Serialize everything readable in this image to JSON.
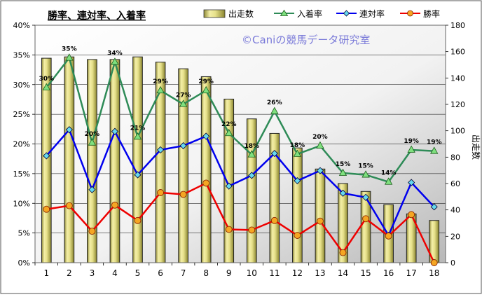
{
  "chart_data": {
    "type": "bar+line",
    "title": "勝率、連対率、入着率",
    "watermark": "©Caniの競馬データ研究室",
    "categories": [
      "1",
      "2",
      "3",
      "4",
      "5",
      "6",
      "7",
      "8",
      "9",
      "10",
      "11",
      "12",
      "13",
      "14",
      "15",
      "16",
      "17",
      "18"
    ],
    "y_left": {
      "ticks": [
        "0%",
        "5%",
        "10%",
        "15%",
        "20%",
        "25%",
        "30%",
        "35%",
        "40%"
      ],
      "range": [
        0,
        40
      ]
    },
    "y_right": {
      "label": "出走数",
      "ticks": [
        "0",
        "20",
        "40",
        "60",
        "80",
        "100",
        "120",
        "140",
        "160",
        "180"
      ],
      "range": [
        0,
        180
      ]
    },
    "legend": {
      "position": "top",
      "items": [
        "出走数",
        "入着率",
        "連対率",
        "勝率"
      ]
    },
    "bars": {
      "name": "出走数",
      "axis": "right",
      "color": "#e6e08a",
      "values": [
        155,
        156,
        154,
        154,
        156,
        152,
        147,
        141,
        124,
        109,
        98,
        87,
        71,
        60,
        54,
        44,
        37,
        32
      ]
    },
    "series": [
      {
        "name": "入着率",
        "axis": "left",
        "color": "#2e8b57",
        "marker": "triangle",
        "values": [
          29.5,
          34.5,
          20.2,
          33.8,
          21.2,
          29.0,
          26.7,
          29.0,
          21.8,
          18.2,
          25.5,
          18.3,
          19.7,
          15.1,
          14.8,
          13.6,
          19.0,
          18.8
        ],
        "labels": [
          "30%",
          "35%",
          "20%",
          "34%",
          "21%",
          "29%",
          "27%",
          "29%",
          "22%",
          "18%",
          "26%",
          "18%",
          "20%",
          "15%",
          "15%",
          "14%",
          "19%",
          "19%"
        ]
      },
      {
        "name": "連対率",
        "axis": "left",
        "color": "#0000ee",
        "marker": "diamond",
        "values": [
          18.0,
          22.4,
          12.3,
          22.1,
          14.8,
          19.0,
          19.7,
          21.3,
          12.9,
          14.7,
          18.4,
          13.8,
          15.5,
          11.7,
          11.0,
          4.6,
          13.5,
          9.4
        ]
      },
      {
        "name": "勝率",
        "axis": "left",
        "color": "#ee0000",
        "marker": "circle",
        "values": [
          9.0,
          9.6,
          5.3,
          9.7,
          7.1,
          11.8,
          11.5,
          13.4,
          5.6,
          5.5,
          7.1,
          4.6,
          7.0,
          1.7,
          7.4,
          4.5,
          8.1,
          0.0
        ]
      }
    ]
  }
}
